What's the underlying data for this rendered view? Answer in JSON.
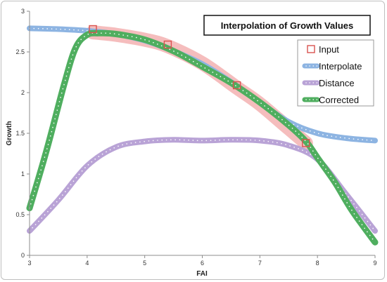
{
  "chart_data": {
    "type": "line",
    "title": "Interpolation of Growth Values",
    "xlabel": "FAI",
    "ylabel": "Growth",
    "xlim": [
      3,
      9
    ],
    "ylim": [
      0,
      3
    ],
    "x_ticks": [
      "3",
      "4",
      "5",
      "6",
      "7",
      "8",
      "9"
    ],
    "y_ticks": [
      "0",
      "0.5",
      "1",
      "1.5",
      "2",
      "2.5",
      "3"
    ],
    "grid": false,
    "legend_position": "top-right",
    "series": [
      {
        "name": "Input",
        "kind": "markers",
        "color": "#e07070",
        "x": [
          4.1,
          5.4,
          6.6,
          7.8
        ],
        "y": [
          2.78,
          2.59,
          2.09,
          1.38
        ]
      },
      {
        "name": "Interpolate",
        "kind": "line",
        "color": "#8db4e2",
        "x": [
          3.0,
          3.5,
          4.0,
          4.5,
          5.0,
          5.5,
          6.0,
          6.5,
          7.0,
          7.5,
          8.0,
          8.5,
          9.0
        ],
        "y": [
          2.79,
          2.78,
          2.76,
          2.72,
          2.64,
          2.51,
          2.35,
          2.13,
          1.88,
          1.64,
          1.5,
          1.44,
          1.41
        ]
      },
      {
        "name": "Distance",
        "kind": "line",
        "color": "#b9a3d6",
        "x": [
          3.0,
          3.5,
          4.0,
          4.5,
          5.0,
          5.5,
          6.0,
          6.5,
          7.0,
          7.5,
          8.0,
          8.5,
          9.0
        ],
        "y": [
          0.3,
          0.68,
          1.1,
          1.33,
          1.4,
          1.42,
          1.41,
          1.42,
          1.41,
          1.35,
          1.18,
          0.75,
          0.3
        ]
      },
      {
        "name": "Corrected",
        "kind": "line",
        "color": "#4fae5f",
        "x": [
          3.0,
          3.3,
          3.6,
          3.8,
          4.0,
          4.2,
          4.5,
          5.0,
          5.5,
          6.0,
          6.5,
          7.0,
          7.5,
          7.8,
          8.0,
          8.3,
          8.6,
          9.0
        ],
        "y": [
          0.58,
          1.3,
          2.1,
          2.55,
          2.71,
          2.73,
          2.72,
          2.65,
          2.51,
          2.32,
          2.12,
          1.88,
          1.6,
          1.4,
          1.2,
          0.9,
          0.55,
          0.16
        ]
      }
    ],
    "band": {
      "color": "#f4b6b6",
      "x": [
        4.1,
        4.5,
        5.0,
        5.4,
        6.0,
        6.6,
        7.0,
        7.5,
        7.8
      ],
      "y": [
        2.74,
        2.71,
        2.65,
        2.57,
        2.36,
        2.06,
        1.86,
        1.56,
        1.38
      ]
    }
  }
}
